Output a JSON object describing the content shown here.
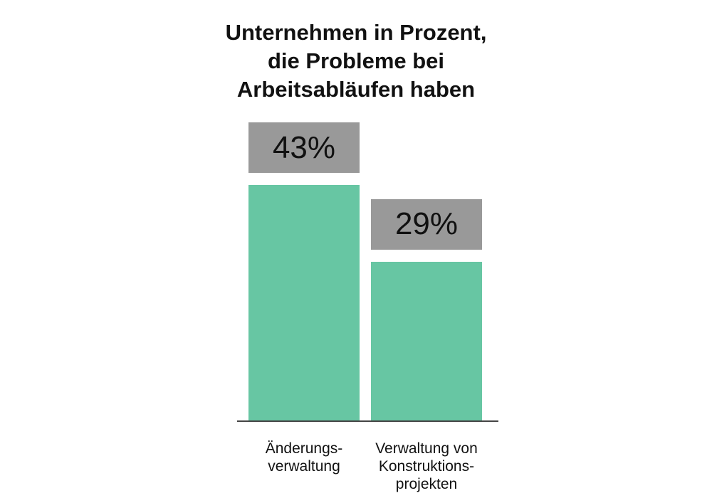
{
  "chart_data": {
    "type": "bar",
    "title_lines": [
      "Unternehmen in Prozent,",
      "die Probleme bei",
      "Arbeitsabläufen haben"
    ],
    "categories": [
      [
        "Änderungs-",
        "verwaltung"
      ],
      [
        "Verwaltung von",
        "Konstruktions-",
        "projekten"
      ]
    ],
    "values": [
      43,
      29
    ],
    "value_labels": [
      "43%",
      "29%"
    ],
    "xlabel": "",
    "ylabel": "",
    "ylim": [
      0,
      43
    ],
    "grid": false,
    "colors": {
      "bar": "#67c6a3",
      "label_box": "#999999"
    }
  }
}
